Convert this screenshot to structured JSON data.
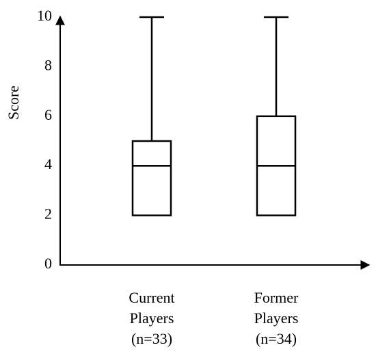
{
  "chart_data": {
    "type": "box",
    "ylabel": "Score",
    "categories": [
      "Current Players",
      "Former Players"
    ],
    "sample_sizes": [
      "(n=33)",
      "(n=34)"
    ],
    "boxes": [
      {
        "min": 2,
        "q1": 2,
        "median": 4,
        "q3": 5,
        "max": 10
      },
      {
        "min": 2,
        "q1": 2,
        "median": 4,
        "q3": 6,
        "max": 10
      }
    ],
    "color": "#000000",
    "ylim": [
      0,
      10
    ],
    "yticks": [
      0,
      2,
      4,
      6,
      8,
      10
    ],
    "grid": false
  }
}
